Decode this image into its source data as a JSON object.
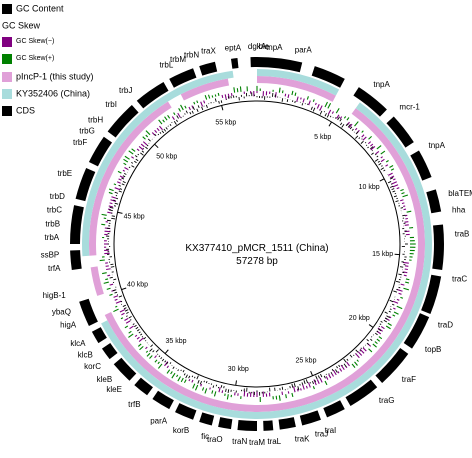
{
  "legend": {
    "items": [
      {
        "label": "GC Content",
        "color": "#000000",
        "small": false
      },
      {
        "label": "GC Skew",
        "color": null,
        "small": false
      },
      {
        "label": "GC Skew(−)",
        "color": "#800080",
        "small": true
      },
      {
        "label": "GC Skew(+)",
        "color": "#008000",
        "small": true
      },
      {
        "label": "pIncP-1 (this study)",
        "color": "#e0a0d8",
        "small": false
      },
      {
        "label": "KY352406 (China)",
        "color": "#a8dcdc",
        "small": false
      },
      {
        "label": "CDS",
        "color": "#000000",
        "small": false
      }
    ]
  },
  "map": {
    "name": "KX377410_pMCR_1511 (China)",
    "length": "57278 bp",
    "total_bp": 57278,
    "ticks": [
      "5 kbp",
      "10 kbp",
      "15 kbp",
      "20 kbp",
      "25 kbp",
      "30 kbp",
      "35 kbp",
      "40 kbp",
      "45 kbp",
      "50 kbp",
      "55 kbp"
    ],
    "colors": {
      "cds": "#000000",
      "pincp1": "#e0a0d8",
      "ky352406": "#a8dcdc",
      "gc_content": "#000000",
      "skew_neg": "#800080",
      "skew_pos": "#008000"
    },
    "genes": [
      {
        "name": "parA",
        "deg": 11
      },
      {
        "name": "tnpA",
        "deg": 36
      },
      {
        "name": "mcr-1",
        "deg": 46
      },
      {
        "name": "tnpA",
        "deg": 60
      },
      {
        "name": "blaTEM",
        "deg": 75
      },
      {
        "name": "hha",
        "deg": 80
      },
      {
        "name": "traB",
        "deg": 87
      },
      {
        "name": "traC",
        "deg": 100
      },
      {
        "name": "traD",
        "deg": 114
      },
      {
        "name": "topB",
        "deg": 122
      },
      {
        "name": "traF",
        "deg": 133
      },
      {
        "name": "traG",
        "deg": 142
      },
      {
        "name": "traI",
        "deg": 160
      },
      {
        "name": "traJ",
        "deg": 163
      },
      {
        "name": "traK",
        "deg": 169
      },
      {
        "name": "traL",
        "deg": 175
      },
      {
        "name": "traM",
        "deg": 180
      },
      {
        "name": "traN",
        "deg": 185
      },
      {
        "name": "traO",
        "deg": 190
      },
      {
        "name": "fic",
        "deg": 194
      },
      {
        "name": "korB",
        "deg": 200
      },
      {
        "name": "parA",
        "deg": 207
      },
      {
        "name": "trfB",
        "deg": 216
      },
      {
        "name": "kleE",
        "deg": 223
      },
      {
        "name": "kleB",
        "deg": 227
      },
      {
        "name": "korC",
        "deg": 232
      },
      {
        "name": "klcB",
        "deg": 236
      },
      {
        "name": "klcA",
        "deg": 240
      },
      {
        "name": "higA",
        "deg": 246
      },
      {
        "name": "ybaQ",
        "deg": 250
      },
      {
        "name": "higB-1",
        "deg": 255
      },
      {
        "name": "trfA",
        "deg": 263
      },
      {
        "name": "ssBP",
        "deg": 267
      },
      {
        "name": "trbA",
        "deg": 272
      },
      {
        "name": "trbB",
        "deg": 276
      },
      {
        "name": "trbC",
        "deg": 280
      },
      {
        "name": "trbD",
        "deg": 284
      },
      {
        "name": "trbE",
        "deg": 291
      },
      {
        "name": "trbF",
        "deg": 301
      },
      {
        "name": "trbG",
        "deg": 305
      },
      {
        "name": "trbH",
        "deg": 309
      },
      {
        "name": "trbI",
        "deg": 315
      },
      {
        "name": "trbJ",
        "deg": 321
      },
      {
        "name": "trbL",
        "deg": 335
      },
      {
        "name": "trbM",
        "deg": 339
      },
      {
        "name": "trbN",
        "deg": 343
      },
      {
        "name": "traX",
        "deg": 348
      },
      {
        "name": "eptA",
        "deg": 353
      },
      {
        "name": "dgkA",
        "deg": 360
      },
      {
        "name": "ble",
        "deg": 2
      },
      {
        "name": "tnpA",
        "deg": 5
      }
    ],
    "cds_arcs": [
      [
        358,
        14
      ],
      [
        18,
        28
      ],
      [
        33,
        44
      ],
      [
        47,
        57
      ],
      [
        60,
        69
      ],
      [
        73,
        80
      ],
      [
        84,
        98
      ],
      [
        100,
        112
      ],
      [
        113,
        124
      ],
      [
        126,
        138
      ],
      [
        140,
        150
      ],
      [
        152,
        158
      ],
      [
        160,
        166
      ],
      [
        168,
        173
      ],
      [
        175,
        178
      ],
      [
        180,
        186
      ],
      [
        188,
        192
      ],
      [
        194,
        198
      ],
      [
        200,
        206
      ],
      [
        208,
        214
      ],
      [
        216,
        221
      ],
      [
        223,
        230
      ],
      [
        232,
        236
      ],
      [
        238,
        242
      ],
      [
        244,
        252
      ],
      [
        262,
        268
      ],
      [
        270,
        282
      ],
      [
        284,
        294
      ],
      [
        296,
        305
      ],
      [
        307,
        318
      ],
      [
        320,
        330
      ],
      [
        332,
        340
      ],
      [
        342,
        347
      ],
      [
        352,
        354
      ]
    ],
    "pincp1_arcs": [
      [
        0,
        28
      ],
      [
        36,
        245
      ],
      [
        252,
        262
      ],
      [
        266,
        328
      ],
      [
        333,
        350
      ]
    ],
    "ky352406_arcs": [
      [
        0,
        28
      ],
      [
        36,
        243
      ],
      [
        266,
        352
      ]
    ]
  }
}
